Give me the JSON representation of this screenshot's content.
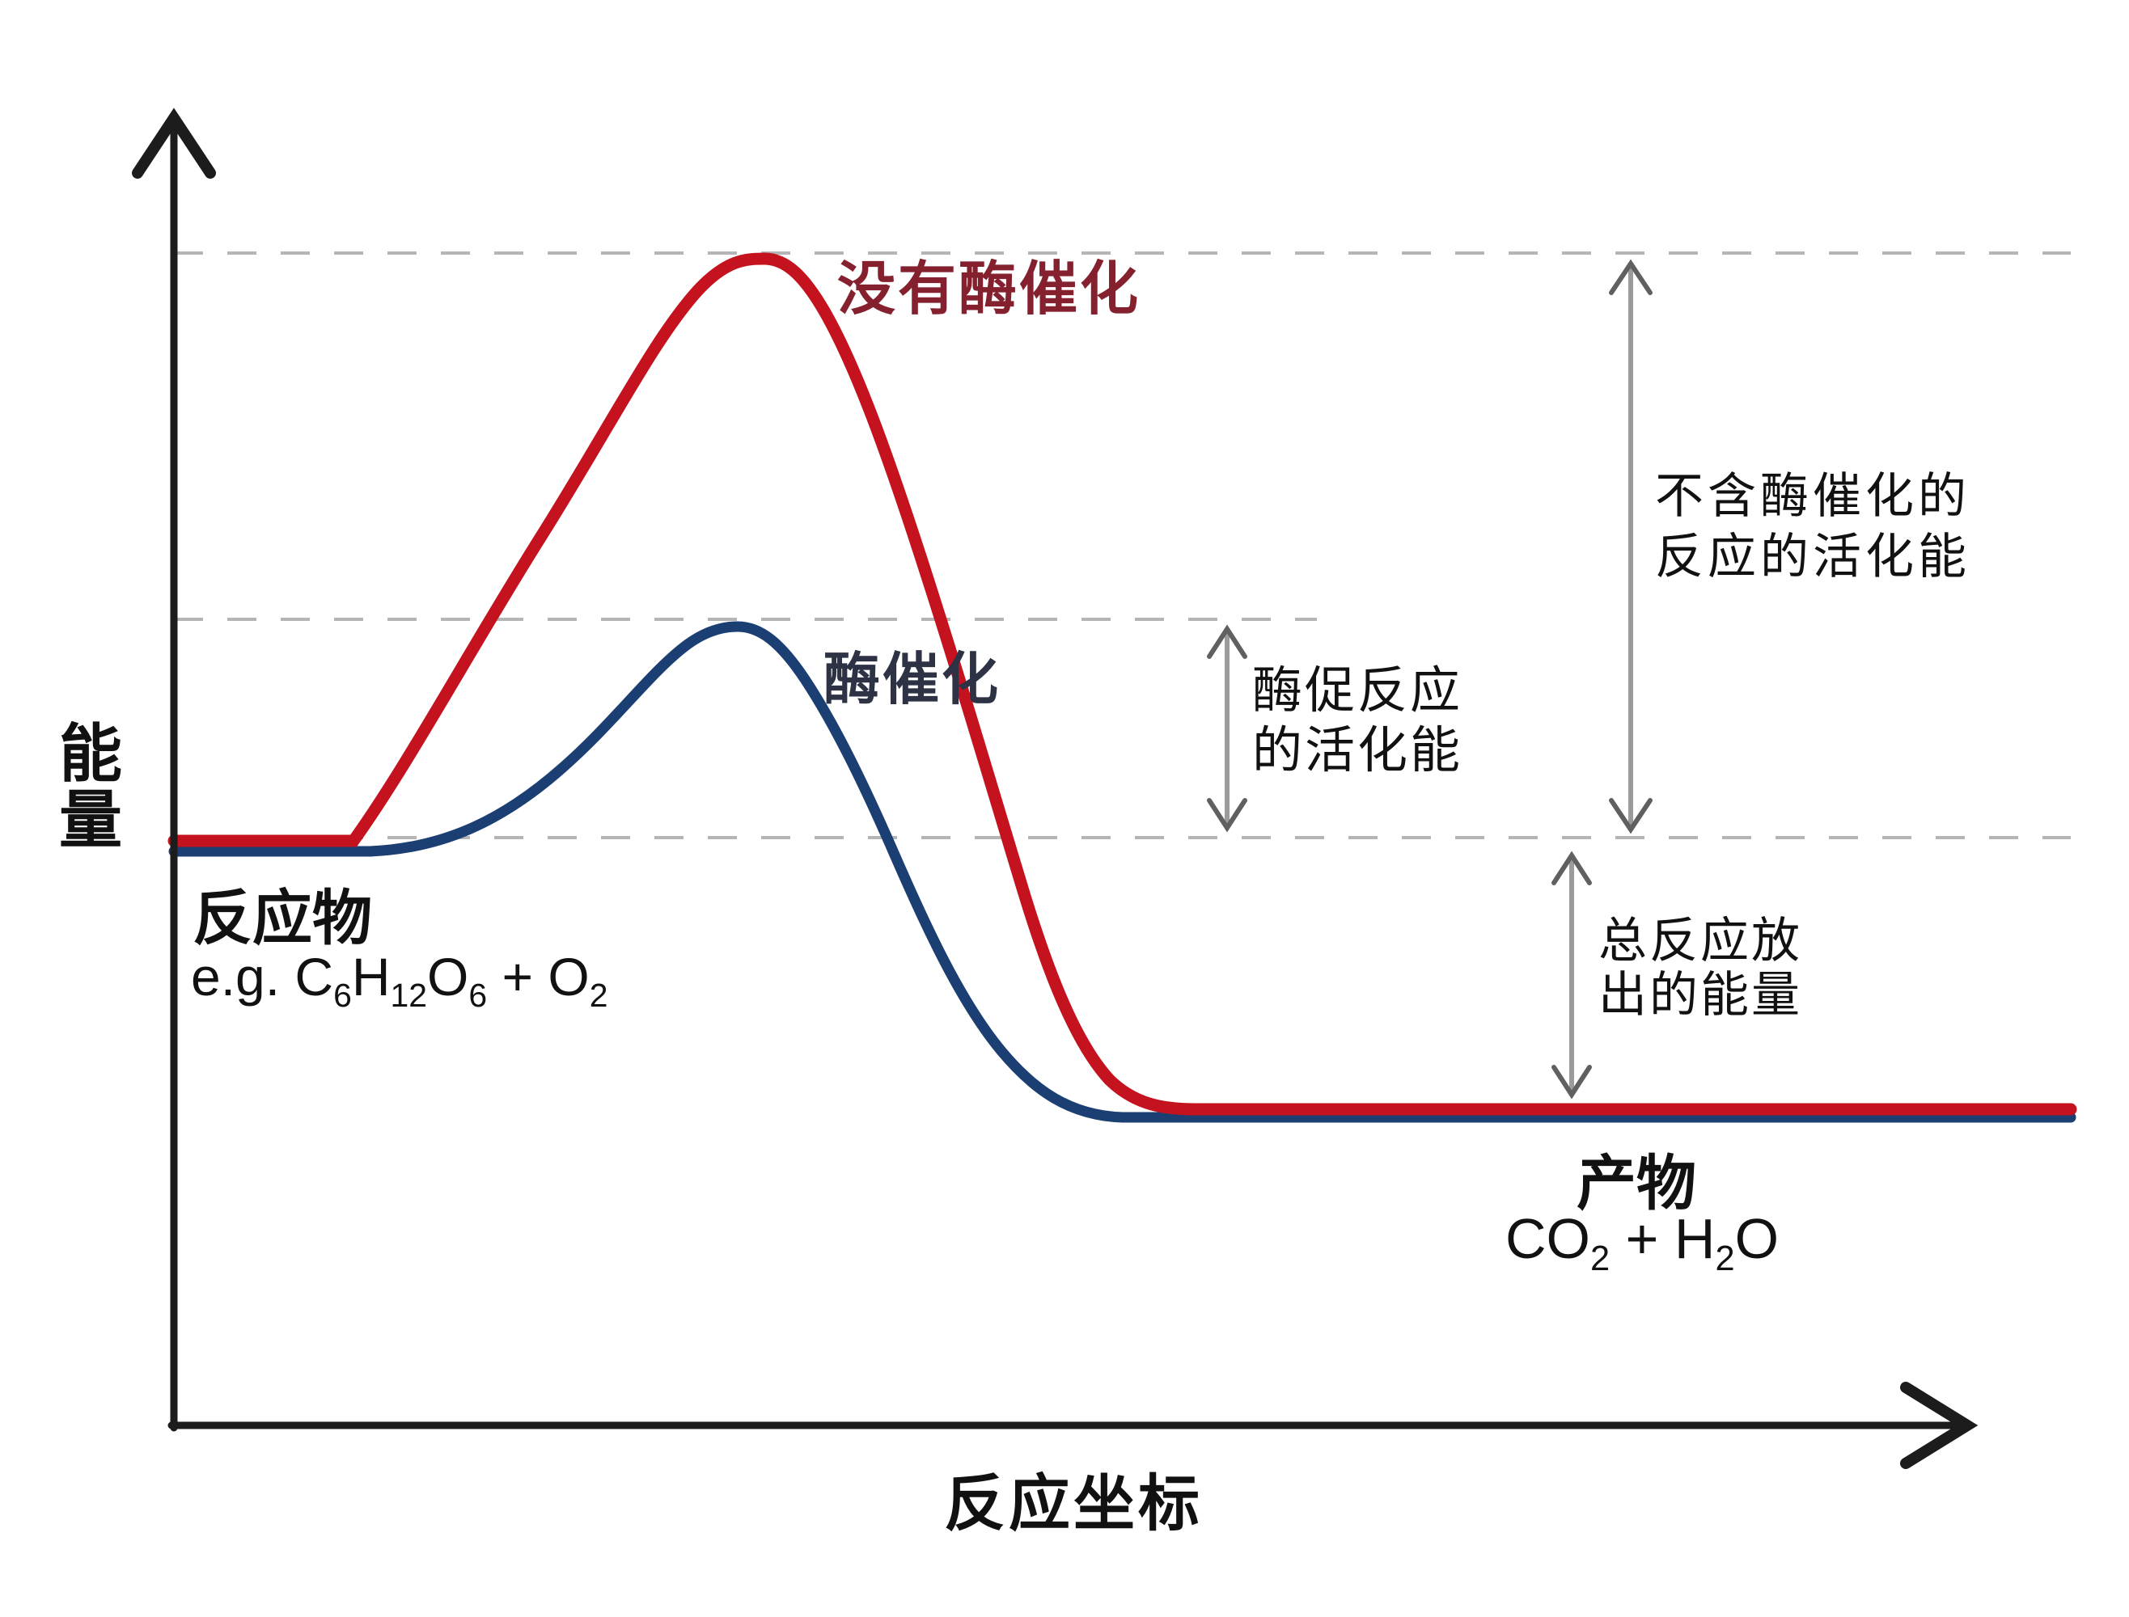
{
  "colors": {
    "curve_uncatalyzed": "#c5121f",
    "curve_catalyzed": "#1c3f73",
    "label_uncatalyzed": "#85212f",
    "label_catalyzed": "#2d3345",
    "axis": "#1c1c1c",
    "dashed_line": "#b5b5b5",
    "arrow_shaft": "#9b9b9b",
    "arrow_head": "#606060",
    "text": "#111111"
  },
  "axes": {
    "y_label": "能量",
    "x_label": "反应坐标"
  },
  "curve_labels": {
    "uncatalyzed": "没有酶催化",
    "catalyzed": "酶催化"
  },
  "reactants": {
    "label": "反应物",
    "formula": [
      {
        "text": "e.g. C"
      },
      {
        "text": "6",
        "sub": true
      },
      {
        "text": "H"
      },
      {
        "text": "12",
        "sub": true
      },
      {
        "text": "O"
      },
      {
        "text": "6",
        "sub": true
      },
      {
        "text": " + O"
      },
      {
        "text": "2",
        "sub": true
      }
    ]
  },
  "products": {
    "label": "产物",
    "formula": [
      {
        "text": "CO"
      },
      {
        "text": "2",
        "sub": true
      },
      {
        "text": " + H"
      },
      {
        "text": "2",
        "sub": true
      },
      {
        "text": "O"
      }
    ]
  },
  "annotations": {
    "ea_uncatalyzed": {
      "line1": "不含酶催化的",
      "line2": "反应的活化能"
    },
    "ea_catalyzed": {
      "line1": "酶促反应",
      "line2": "的活化能"
    },
    "energy_released": {
      "line1": "总反应放",
      "line2": "出的能量"
    }
  },
  "chart_data": {
    "type": "line",
    "title": "",
    "xlabel": "反应坐标",
    "ylabel": "能量",
    "grid": false,
    "legend_position": "inline-labels",
    "axis_tick_labels": "none (qualitative diagram)",
    "y_scale_note": "relative energy, estimated 0-100 scale; dashed reference levels at 100 (uncatalyzed peak), 62 (catalyzed peak), 40 (reactants)",
    "x": "reaction progress 0-1",
    "series": [
      {
        "name": "没有酶催化",
        "color": "#c5121f",
        "x": [
          0,
          0.095,
          0.19,
          0.28,
          0.31,
          0.39,
          0.45,
          0.49,
          0.54,
          1.0
        ],
        "y": [
          40,
          40,
          71,
          96,
          100,
          69,
          34,
          15,
          12,
          12
        ]
      },
      {
        "name": "酶催化",
        "color": "#1c3f73",
        "x": [
          0,
          0.1,
          0.21,
          0.27,
          0.3,
          0.38,
          0.44,
          0.5,
          1.0
        ],
        "y": [
          39,
          39,
          47,
          60,
          62,
          38,
          18,
          12,
          12
        ]
      }
    ],
    "reference_levels_dashed": [
      100,
      62,
      40
    ],
    "annotations": [
      {
        "text": "不含酶催化的反应的活化能",
        "from_level": 40,
        "to_level": 100
      },
      {
        "text": "酶促反应的活化能",
        "from_level": 40,
        "to_level": 62
      },
      {
        "text": "总反应放出的能量",
        "from_level": 12,
        "to_level": 40
      }
    ],
    "reactant_level": 40,
    "product_level": 12,
    "reactants_text": "反应物 e.g. C6H12O6 + O2",
    "products_text": "产物 CO2 + H2O"
  }
}
